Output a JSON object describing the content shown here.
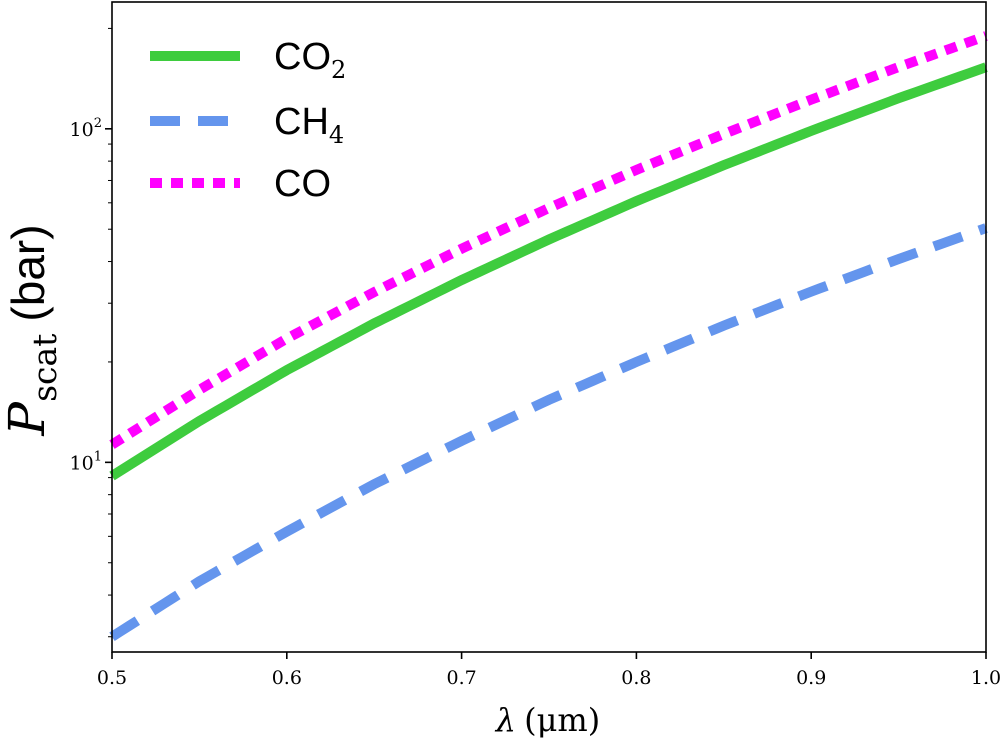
{
  "chart_data": {
    "type": "line",
    "xlabel": "λ (μm)",
    "ylabel": "P_scat (bar)",
    "ylabel_main": "P",
    "ylabel_sub": "scat",
    "ylabel_unit": "(bar)",
    "xlabel_lambda": "λ",
    "xlabel_unit": "(μm)",
    "xscale": "linear",
    "yscale": "log",
    "xlim": [
      0.5,
      1.0
    ],
    "ylim": [
      2.7,
      240
    ],
    "grid": false,
    "legend_position": "top-left",
    "xticks": [
      "0.5",
      "0.6",
      "0.7",
      "0.8",
      "0.9",
      "1.0"
    ],
    "yticks": [
      {
        "value": 10,
        "base": "10",
        "exp": "1"
      },
      {
        "value": 100,
        "base": "10",
        "exp": "2"
      }
    ],
    "x": [
      0.5,
      0.55,
      0.6,
      0.65,
      0.7,
      0.75,
      0.8,
      0.85,
      0.9,
      0.95,
      1.0
    ],
    "series": [
      {
        "name": "CO2",
        "legend_main": "CO",
        "legend_sub": "2",
        "color": "#3ecc3e",
        "style": "solid",
        "values": [
          9.1,
          13.3,
          18.9,
          26.1,
          35.2,
          46.6,
          60.7,
          77.8,
          98.6,
          123.5,
          153.0
        ]
      },
      {
        "name": "CH4",
        "legend_main": "CH",
        "legend_sub": "4",
        "color": "#6495ed",
        "style": "dashed",
        "values": [
          3.0,
          4.4,
          6.2,
          8.6,
          11.6,
          15.4,
          20.0,
          25.7,
          32.5,
          40.7,
          50.4
        ]
      },
      {
        "name": "CO",
        "legend_main": "CO",
        "legend_sub": "",
        "color": "#ff00ff",
        "style": "dotted",
        "values": [
          11.3,
          16.5,
          23.5,
          32.4,
          43.7,
          57.9,
          75.3,
          96.5,
          122.3,
          153.2,
          189.8
        ]
      }
    ]
  }
}
